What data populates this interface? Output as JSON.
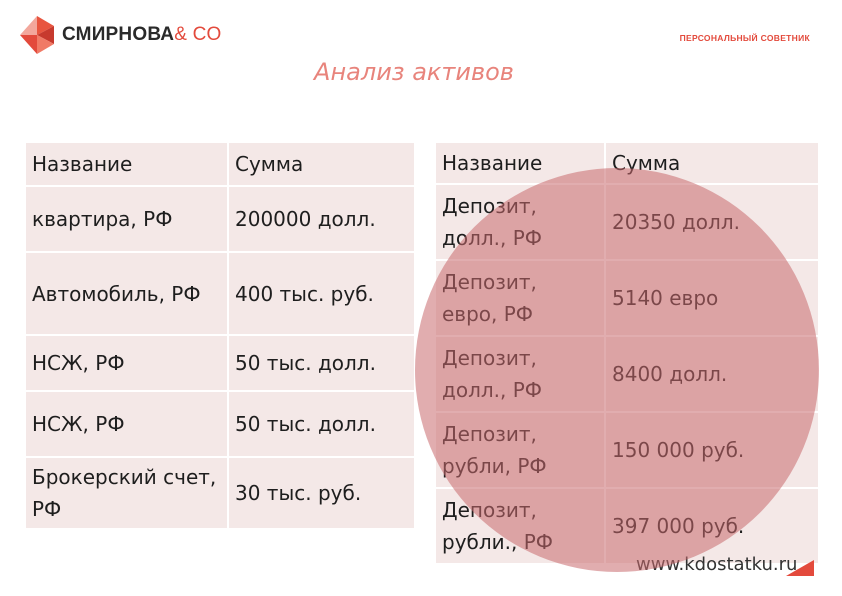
{
  "header": {
    "brand_name": "СМИРНОВА",
    "brand_suffix": "& CO",
    "tagline": "ПЕРСОНАЛЬНЫЙ СОВЕТНИК",
    "logo_icon": "faceted-red-logo-icon"
  },
  "title": "Анализ активов",
  "left_table": {
    "headers": [
      "Название",
      "Сумма"
    ],
    "rows": [
      {
        "name": "квартира, РФ",
        "amount": "200000 долл."
      },
      {
        "name": "Автомобиль, РФ",
        "amount": "400 тыс. руб."
      },
      {
        "name": "НСЖ, РФ",
        "amount": "50 тыс. долл."
      },
      {
        "name": "НСЖ, РФ",
        "amount": "50 тыс. долл."
      },
      {
        "name": "Брокерский счет, РФ",
        "amount": "30 тыс. руб."
      }
    ]
  },
  "right_table": {
    "headers": [
      "Название",
      "Сумма"
    ],
    "rows": [
      {
        "name": "Депозит, долл., РФ",
        "amount": "20350 долл."
      },
      {
        "name": "Депозит, евро, РФ",
        "amount": "5140 евро"
      },
      {
        "name": "Депозит, долл., РФ",
        "amount": "8400 долл."
      },
      {
        "name": "Депозит, рубли, РФ",
        "amount": "150 000 руб."
      },
      {
        "name": "Депозит, рубли., РФ",
        "amount": "397 000 руб."
      }
    ]
  },
  "footer": {
    "url": "www.kdostatku.ru"
  },
  "colors": {
    "accent": "#e34a3c",
    "title": "#e8847c",
    "table_bg": "#f4e8e7",
    "circle": "#c96a6e"
  }
}
